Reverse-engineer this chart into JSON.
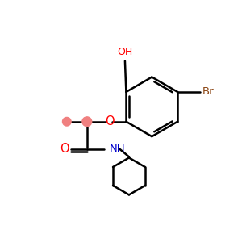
{
  "bg_color": "#ffffff",
  "bond_color": "#000000",
  "bond_width": 1.8,
  "atom_colors": {
    "O": "#ff0000",
    "N": "#0000cc",
    "Br": "#8b4513",
    "OH": "#ff0000",
    "C": "#000000"
  },
  "circle_color": "#f08080",
  "figsize": [
    3.0,
    3.0
  ],
  "dpi": 100
}
